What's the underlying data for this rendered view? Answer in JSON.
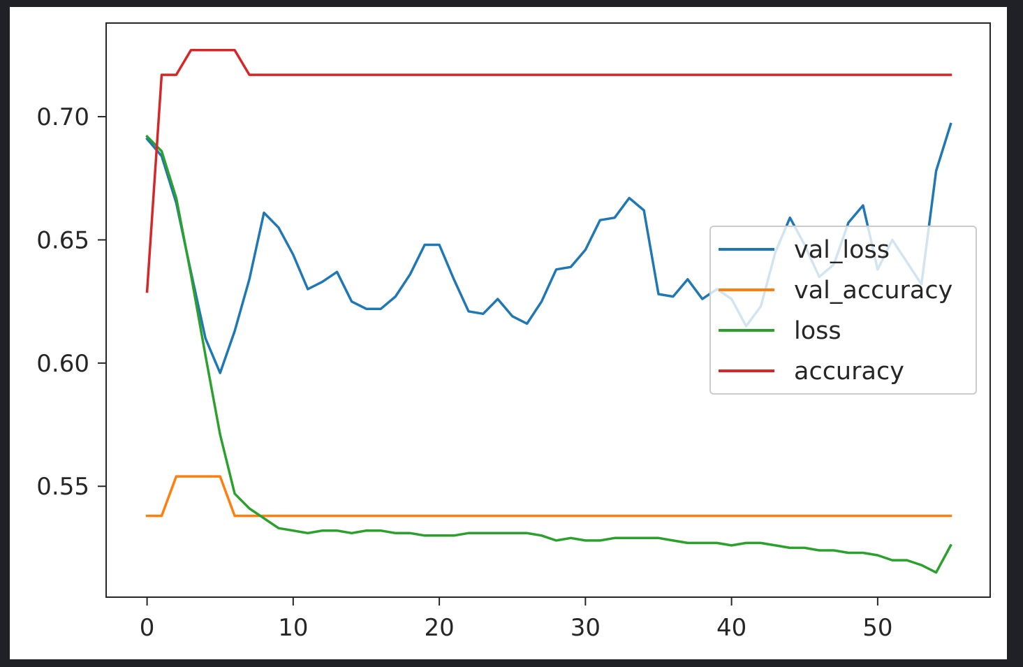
{
  "chart_data": {
    "type": "line",
    "title": "",
    "xlabel": "",
    "ylabel": "",
    "xlim": [
      -2.8,
      57.7
    ],
    "ylim": [
      0.505,
      0.738
    ],
    "xticks": [
      0,
      10,
      20,
      30,
      40,
      50
    ],
    "yticks": [
      0.55,
      0.6,
      0.65,
      0.7
    ],
    "ytick_labels": [
      "0.55",
      "0.60",
      "0.65",
      "0.70"
    ],
    "xtick_labels": [
      "0",
      "10",
      "20",
      "30",
      "40",
      "50"
    ],
    "grid": false,
    "legend_position": "center-right",
    "x": [
      0,
      1,
      2,
      3,
      4,
      5,
      6,
      7,
      8,
      9,
      10,
      11,
      12,
      13,
      14,
      15,
      16,
      17,
      18,
      19,
      20,
      21,
      22,
      23,
      24,
      25,
      26,
      27,
      28,
      29,
      30,
      31,
      32,
      33,
      34,
      35,
      36,
      37,
      38,
      39,
      40,
      41,
      42,
      43,
      44,
      45,
      46,
      47,
      48,
      49,
      50,
      51,
      52,
      53,
      54,
      55
    ],
    "series": [
      {
        "name": "val_loss",
        "color": "#1f77b4",
        "values": [
          0.691,
          0.684,
          0.665,
          0.637,
          0.61,
          0.596,
          0.613,
          0.634,
          0.661,
          0.655,
          0.644,
          0.63,
          0.633,
          0.637,
          0.625,
          0.622,
          0.622,
          0.627,
          0.636,
          0.648,
          0.648,
          0.634,
          0.621,
          0.62,
          0.626,
          0.619,
          0.616,
          0.625,
          0.638,
          0.639,
          0.646,
          0.658,
          0.659,
          0.667,
          0.662,
          0.628,
          0.627,
          0.634,
          0.626,
          0.63,
          0.626,
          0.615,
          0.623,
          0.645,
          0.659,
          0.648,
          0.635,
          0.64,
          0.657,
          0.664,
          0.638,
          0.65,
          0.641,
          0.632,
          0.678,
          0.697
        ]
      },
      {
        "name": "val_accuracy",
        "color": "#ff7f0e",
        "values": [
          0.538,
          0.538,
          0.554,
          0.554,
          0.554,
          0.554,
          0.538,
          0.538,
          0.538,
          0.538,
          0.538,
          0.538,
          0.538,
          0.538,
          0.538,
          0.538,
          0.538,
          0.538,
          0.538,
          0.538,
          0.538,
          0.538,
          0.538,
          0.538,
          0.538,
          0.538,
          0.538,
          0.538,
          0.538,
          0.538,
          0.538,
          0.538,
          0.538,
          0.538,
          0.538,
          0.538,
          0.538,
          0.538,
          0.538,
          0.538,
          0.538,
          0.538,
          0.538,
          0.538,
          0.538,
          0.538,
          0.538,
          0.538,
          0.538,
          0.538,
          0.538,
          0.538,
          0.538,
          0.538,
          0.538,
          0.538
        ]
      },
      {
        "name": "loss",
        "color": "#2ca02c",
        "values": [
          0.692,
          0.686,
          0.667,
          0.636,
          0.603,
          0.571,
          0.547,
          0.541,
          0.537,
          0.533,
          0.532,
          0.531,
          0.532,
          0.532,
          0.531,
          0.532,
          0.532,
          0.531,
          0.531,
          0.53,
          0.53,
          0.53,
          0.531,
          0.531,
          0.531,
          0.531,
          0.531,
          0.53,
          0.528,
          0.529,
          0.528,
          0.528,
          0.529,
          0.529,
          0.529,
          0.529,
          0.528,
          0.527,
          0.527,
          0.527,
          0.526,
          0.527,
          0.527,
          0.526,
          0.525,
          0.525,
          0.524,
          0.524,
          0.523,
          0.523,
          0.522,
          0.52,
          0.52,
          0.518,
          0.515,
          0.526
        ]
      },
      {
        "name": "accuracy",
        "color": "#d62728",
        "values": [
          0.629,
          0.717,
          0.717,
          0.727,
          0.727,
          0.727,
          0.727,
          0.717,
          0.717,
          0.717,
          0.717,
          0.717,
          0.717,
          0.717,
          0.717,
          0.717,
          0.717,
          0.717,
          0.717,
          0.717,
          0.717,
          0.717,
          0.717,
          0.717,
          0.717,
          0.717,
          0.717,
          0.717,
          0.717,
          0.717,
          0.717,
          0.717,
          0.717,
          0.717,
          0.717,
          0.717,
          0.717,
          0.717,
          0.717,
          0.717,
          0.717,
          0.717,
          0.717,
          0.717,
          0.717,
          0.717,
          0.717,
          0.717,
          0.717,
          0.717,
          0.717,
          0.717,
          0.717,
          0.717,
          0.717,
          0.717
        ]
      }
    ]
  }
}
